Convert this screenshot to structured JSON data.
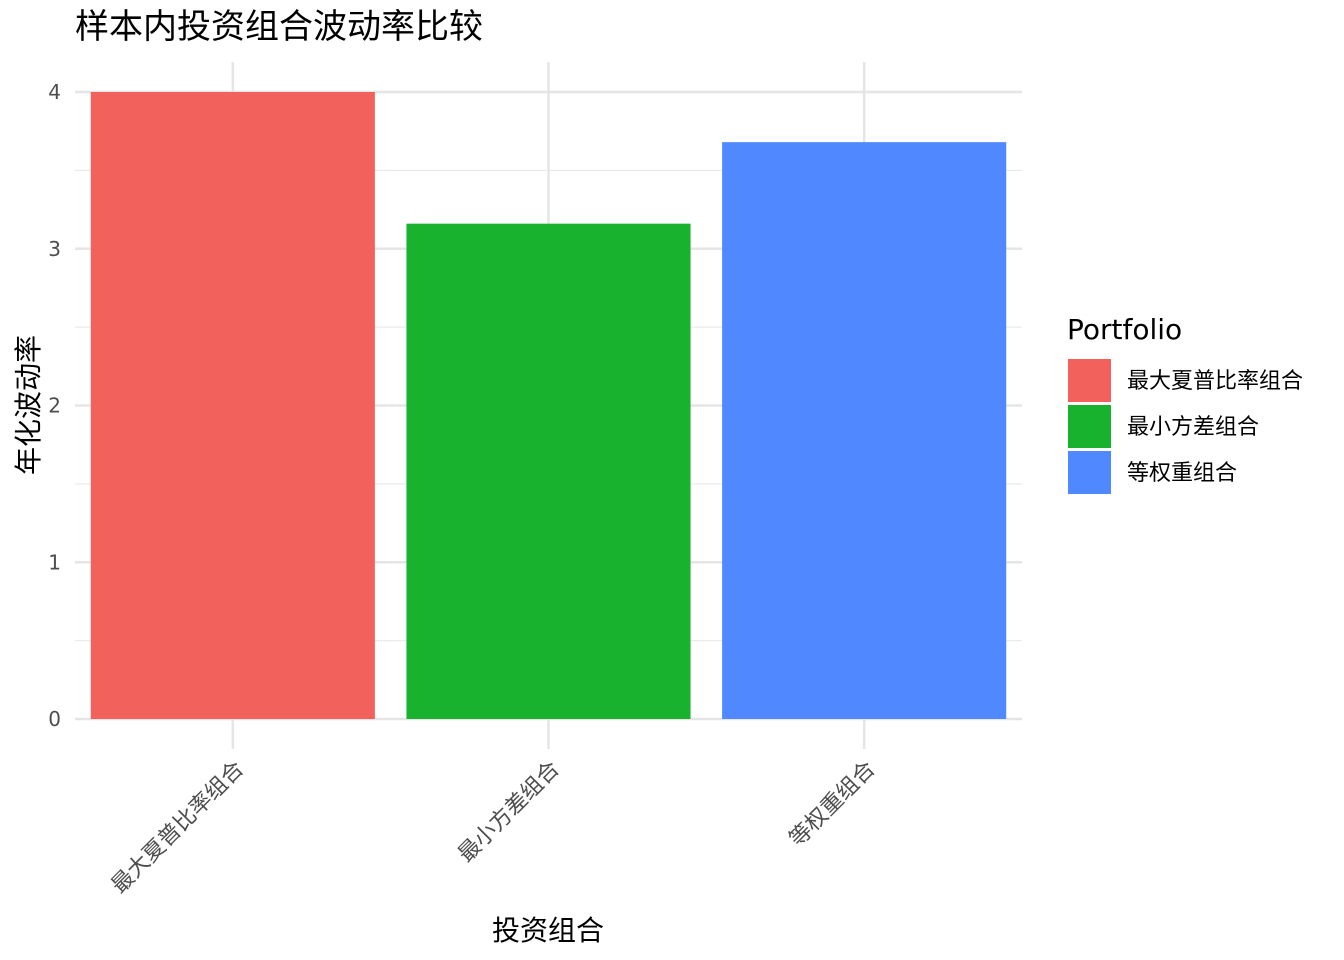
{
  "chart_data": {
    "type": "bar",
    "title": "样本内投资组合波动率比较",
    "xlabel": "投资组合",
    "ylabel": "年化波动率",
    "categories": [
      "最大夏普比率组合",
      "最小方差组合",
      "等权重组合"
    ],
    "values": [
      4.0,
      3.16,
      3.68
    ],
    "colors": [
      "#F3615C",
      "#19B22F",
      "#4F88FF"
    ],
    "ylim": [
      0,
      4.2
    ],
    "yticks": [
      0,
      1,
      2,
      3,
      4
    ],
    "grid": true,
    "legend": {
      "title": "Portfolio",
      "position": "right",
      "entries": [
        "最大夏普比率组合",
        "最小方差组合",
        "等权重组合"
      ]
    }
  }
}
